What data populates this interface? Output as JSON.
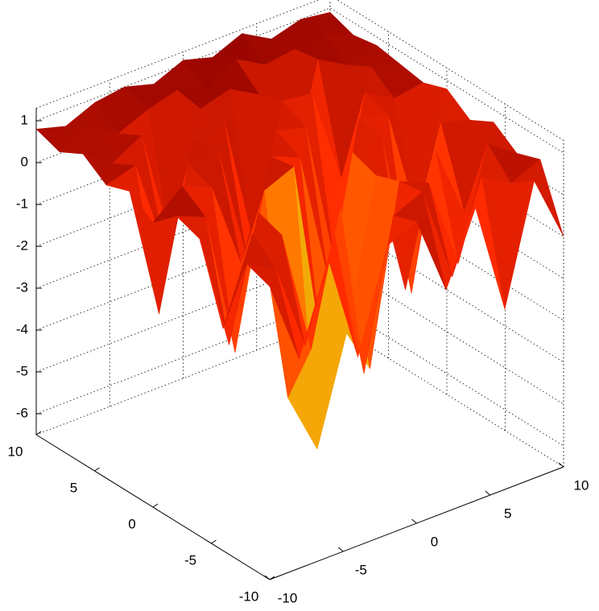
{
  "chart_data": {
    "type": "surface",
    "x": [
      -10,
      -8,
      -6,
      -4,
      -2,
      0,
      2,
      4,
      6,
      8,
      10
    ],
    "y": [
      -10,
      -8,
      -6,
      -4,
      -2,
      0,
      2,
      4,
      6,
      8,
      10
    ],
    "z": [
      [
        0.5,
        -1.5,
        0.6,
        -2.0,
        0.4,
        0.7,
        -1.2,
        0.5,
        -2.2,
        0.6,
        -1.0
      ],
      [
        0.7,
        0.3,
        -1.8,
        0.6,
        -3.0,
        0.5,
        0.8,
        -1.5,
        0.6,
        0.2,
        0.5
      ],
      [
        -1.2,
        0.8,
        0.5,
        -2.5,
        0.6,
        -3.5,
        0.7,
        0.4,
        -1.8,
        0.8,
        0.3
      ],
      [
        0.6,
        -2.2,
        0.7,
        -4.0,
        -5.5,
        -3.0,
        0.5,
        -2.5,
        0.6,
        -1.2,
        0.7
      ],
      [
        0.8,
        0.5,
        -3.0,
        0.6,
        0.9,
        -4.0,
        0.7,
        0.8,
        -3.2,
        0.6,
        0.4
      ],
      [
        0.3,
        0.9,
        0.6,
        -1.5,
        0.8,
        0.5,
        -2.8,
        0.9,
        0.7,
        -2.0,
        0.8
      ],
      [
        0.7,
        -2.5,
        0.8,
        0.9,
        -2.0,
        0.8,
        0.6,
        -3.0,
        0.9,
        0.5,
        0.6
      ],
      [
        0.5,
        0.7,
        -1.6,
        0.8,
        1.0,
        -2.2,
        0.9,
        0.8,
        -1.5,
        0.9,
        0.7
      ],
      [
        0.9,
        0.4,
        0.8,
        -2.0,
        0.9,
        1.1,
        0.7,
        -1.8,
        1.0,
        0.6,
        0.8
      ],
      [
        0.6,
        0.9,
        0.5,
        0.8,
        1.0,
        0.7,
        1.2,
        0.8,
        0.9,
        1.0,
        0.7
      ],
      [
        0.8,
        0.6,
        0.9,
        1.0,
        0.8,
        1.1,
        0.9,
        1.2,
        0.8,
        1.0,
        0.9
      ]
    ],
    "xlim": [
      -10,
      10
    ],
    "xticks": [
      -10,
      -5,
      0,
      5,
      10
    ],
    "ylim": [
      -10,
      10
    ],
    "yticks": [
      -10,
      -5,
      0,
      5,
      10
    ],
    "zlim": [
      -6.5,
      1.3
    ],
    "zticks": [
      -6,
      -5,
      -4,
      -3,
      -2,
      -1,
      0,
      1
    ],
    "colormap": [
      "#40e0d0",
      "#adff2f",
      "#ff9a00",
      "#ff2a00",
      "#8b0000"
    ],
    "grid": true
  }
}
